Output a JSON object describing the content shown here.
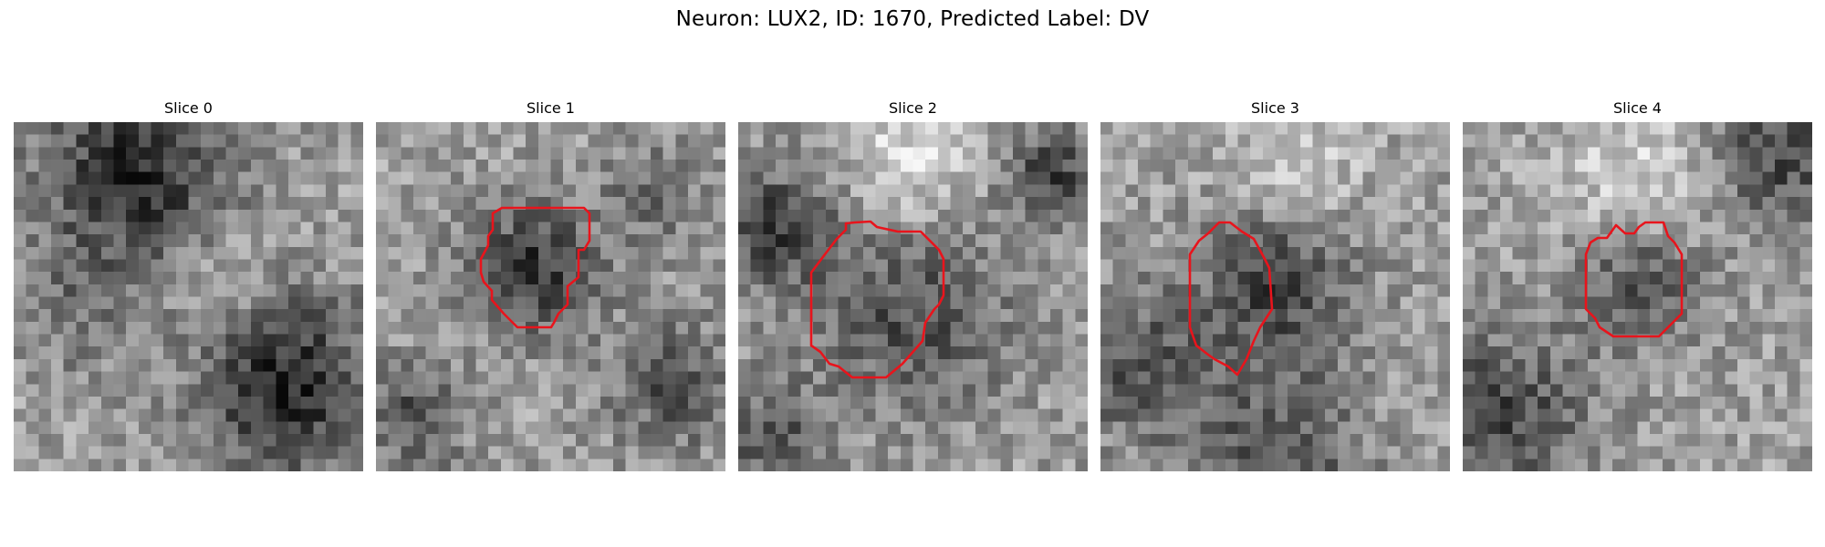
{
  "figure": {
    "title": "Neuron: LUX2, ID: 1670, Predicted Label: DV"
  },
  "panels": [
    {
      "title": "Slice 0",
      "has_contour": false,
      "seed": 11,
      "blobs": [
        [
          0.35,
          0.15,
          0.28,
          -0.45
        ],
        [
          0.78,
          0.75,
          0.25,
          -0.5
        ],
        [
          0.2,
          0.55,
          0.18,
          -0.15
        ],
        [
          0.6,
          0.45,
          0.2,
          0.12
        ]
      ]
    },
    {
      "title": "Slice 1",
      "has_contour": true,
      "seed": 23,
      "blobs": [
        [
          0.45,
          0.42,
          0.18,
          -0.42
        ],
        [
          0.85,
          0.75,
          0.18,
          -0.3
        ],
        [
          0.1,
          0.85,
          0.15,
          -0.3
        ],
        [
          0.8,
          0.2,
          0.15,
          -0.2
        ]
      ]
    },
    {
      "title": "Slice 2",
      "has_contour": true,
      "seed": 37,
      "blobs": [
        [
          0.5,
          0.55,
          0.28,
          -0.3
        ],
        [
          0.1,
          0.3,
          0.18,
          -0.35
        ],
        [
          0.9,
          0.15,
          0.15,
          -0.35
        ],
        [
          0.5,
          0.1,
          0.2,
          0.25
        ],
        [
          0.1,
          0.9,
          0.15,
          -0.3
        ]
      ]
    },
    {
      "title": "Slice 3",
      "has_contour": true,
      "seed": 51,
      "blobs": [
        [
          0.5,
          0.45,
          0.22,
          -0.38
        ],
        [
          0.1,
          0.7,
          0.2,
          -0.3
        ],
        [
          0.5,
          0.95,
          0.25,
          -0.3
        ],
        [
          0.55,
          0.15,
          0.2,
          0.2
        ]
      ]
    },
    {
      "title": "Slice 4",
      "has_contour": true,
      "seed": 67,
      "blobs": [
        [
          0.5,
          0.45,
          0.18,
          -0.3
        ],
        [
          0.1,
          0.85,
          0.25,
          -0.35
        ],
        [
          0.9,
          0.1,
          0.2,
          -0.35
        ],
        [
          0.5,
          0.15,
          0.25,
          0.2
        ]
      ]
    }
  ],
  "colors": {
    "contour": "#e8141c",
    "background": "#ffffff"
  }
}
